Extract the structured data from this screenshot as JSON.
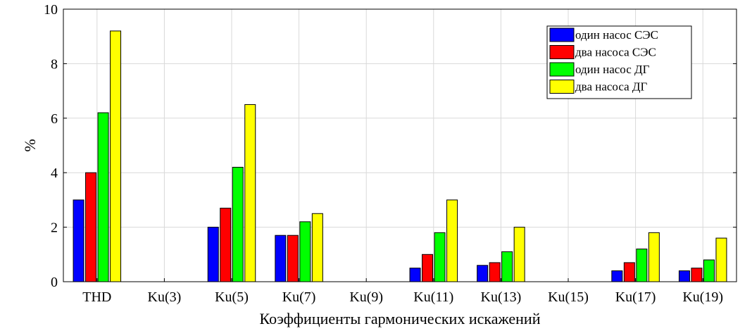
{
  "chart_data": {
    "type": "bar",
    "title": "",
    "xlabel": "Коэффициенты гармонических искажений",
    "ylabel": "%",
    "ylim": [
      0,
      10
    ],
    "yticks": [
      "0",
      "2",
      "4",
      "6",
      "8",
      "10"
    ],
    "grid": true,
    "legend_position": "top-right",
    "categories": [
      "THD",
      "Ku(3)",
      "Ku(5)",
      "Ku(7)",
      "Ku(9)",
      "Ku(11)",
      "Ku(13)",
      "Ku(15)",
      "Ku(17)",
      "Ku(19)"
    ],
    "series": [
      {
        "name": "один насос СЭС",
        "color": "#0000ff",
        "values": [
          3.0,
          0,
          2.0,
          1.7,
          0,
          0.5,
          0.6,
          0,
          0.4,
          0.4
        ]
      },
      {
        "name": "два насоса СЭС",
        "color": "#ff0000",
        "values": [
          4.0,
          0,
          2.7,
          1.7,
          0,
          1.0,
          0.7,
          0,
          0.7,
          0.5
        ]
      },
      {
        "name": "один насос ДГ",
        "color": "#00ff00",
        "values": [
          6.2,
          0,
          4.2,
          2.2,
          0,
          1.8,
          1.1,
          0,
          1.2,
          0.8
        ]
      },
      {
        "name": "два насоса ДГ",
        "color": "#ffff00",
        "values": [
          9.2,
          0,
          6.5,
          2.5,
          0,
          3.0,
          2.0,
          0,
          1.8,
          1.6
        ]
      }
    ]
  }
}
